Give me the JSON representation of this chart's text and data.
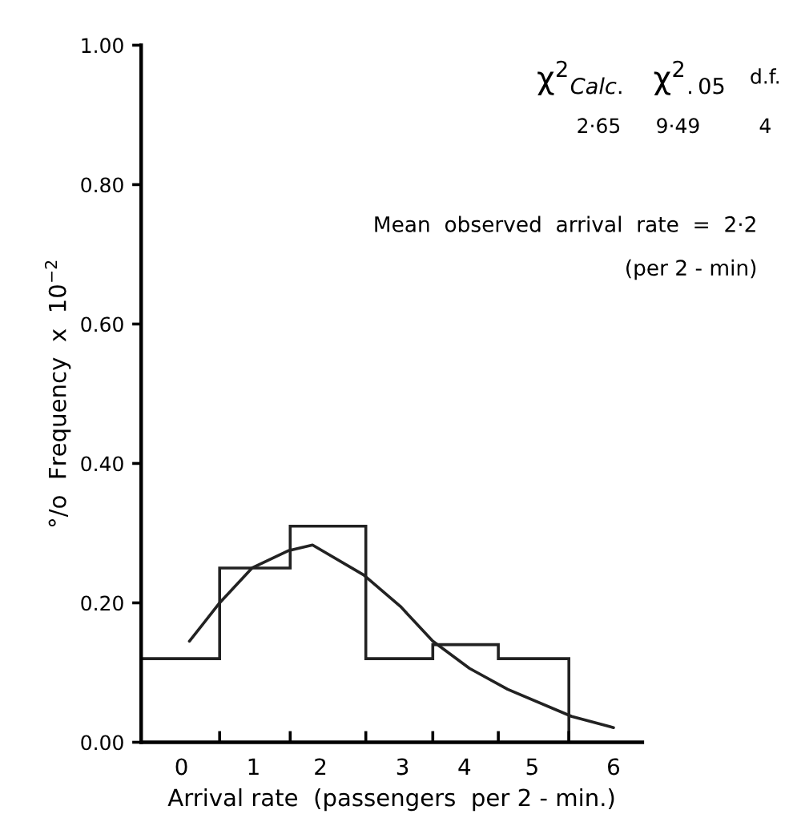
{
  "chart_data": {
    "type": "histogram",
    "xlabel": "Arrival rate  (passengers  per 2 - min.)",
    "ylabel": "°/o  Frequency  x  10$^{−2}$",
    "bins": [
      -0.56,
      0.53,
      1.51,
      2.56,
      3.49,
      4.4,
      5.38
    ],
    "values": [
      0.12,
      0.25,
      0.31,
      0.12,
      0.14,
      0.12
    ],
    "color": "#222222",
    "series": [
      {
        "type": "line",
        "color": "#222222",
        "x": [
          0.11,
          0.53,
          0.98,
          1.49,
          1.82,
          2.53,
          3.04,
          3.49,
          4.0,
          4.53,
          5.42,
          6.0
        ],
        "values": [
          0.145,
          0.2,
          0.25,
          0.275,
          0.283,
          0.24,
          0.195,
          0.145,
          0.106,
          0.076,
          0.037,
          0.021
        ]
      }
    ],
    "xlim": [
      -0.56,
      6.4
    ],
    "ylim": [
      0,
      1.0
    ],
    "xticks": [
      {
        "value": 0,
        "label": "0"
      },
      {
        "value": 1.0,
        "label": "1"
      },
      {
        "value": 1.93,
        "label": "2"
      },
      {
        "value": 3.07,
        "label": "3"
      },
      {
        "value": 3.93,
        "label": "4"
      },
      {
        "value": 4.87,
        "label": "5"
      },
      {
        "value": 6.0,
        "label": "6"
      },
      {
        "value": 0.53,
        "label": null
      },
      {
        "value": 1.51,
        "label": null
      },
      {
        "value": 2.56,
        "label": null
      },
      {
        "value": 3.49,
        "label": null
      },
      {
        "value": 4.4,
        "label": null
      },
      {
        "value": 5.38,
        "label": null
      }
    ],
    "yticks": [
      {
        "value": 0,
        "label": "0.00"
      },
      {
        "value": 0.2,
        "label": "0.20"
      },
      {
        "value": 0.4,
        "label": "0.40"
      },
      {
        "value": 0.6,
        "label": "0.60"
      },
      {
        "value": 0.8,
        "label": "0.80"
      },
      {
        "value": 1.0,
        "label": "1.00"
      }
    ],
    "grid": false,
    "legend": false,
    "annotations": [
      "χ$^{2}$$_{Calc.}$",
      "χ$^{2}$$_{.05}$",
      "d.f.",
      "2·65",
      "9·49",
      "4",
      "Mean  observed  arrival  rate  =  2·2",
      "(per 2 - min)"
    ]
  }
}
